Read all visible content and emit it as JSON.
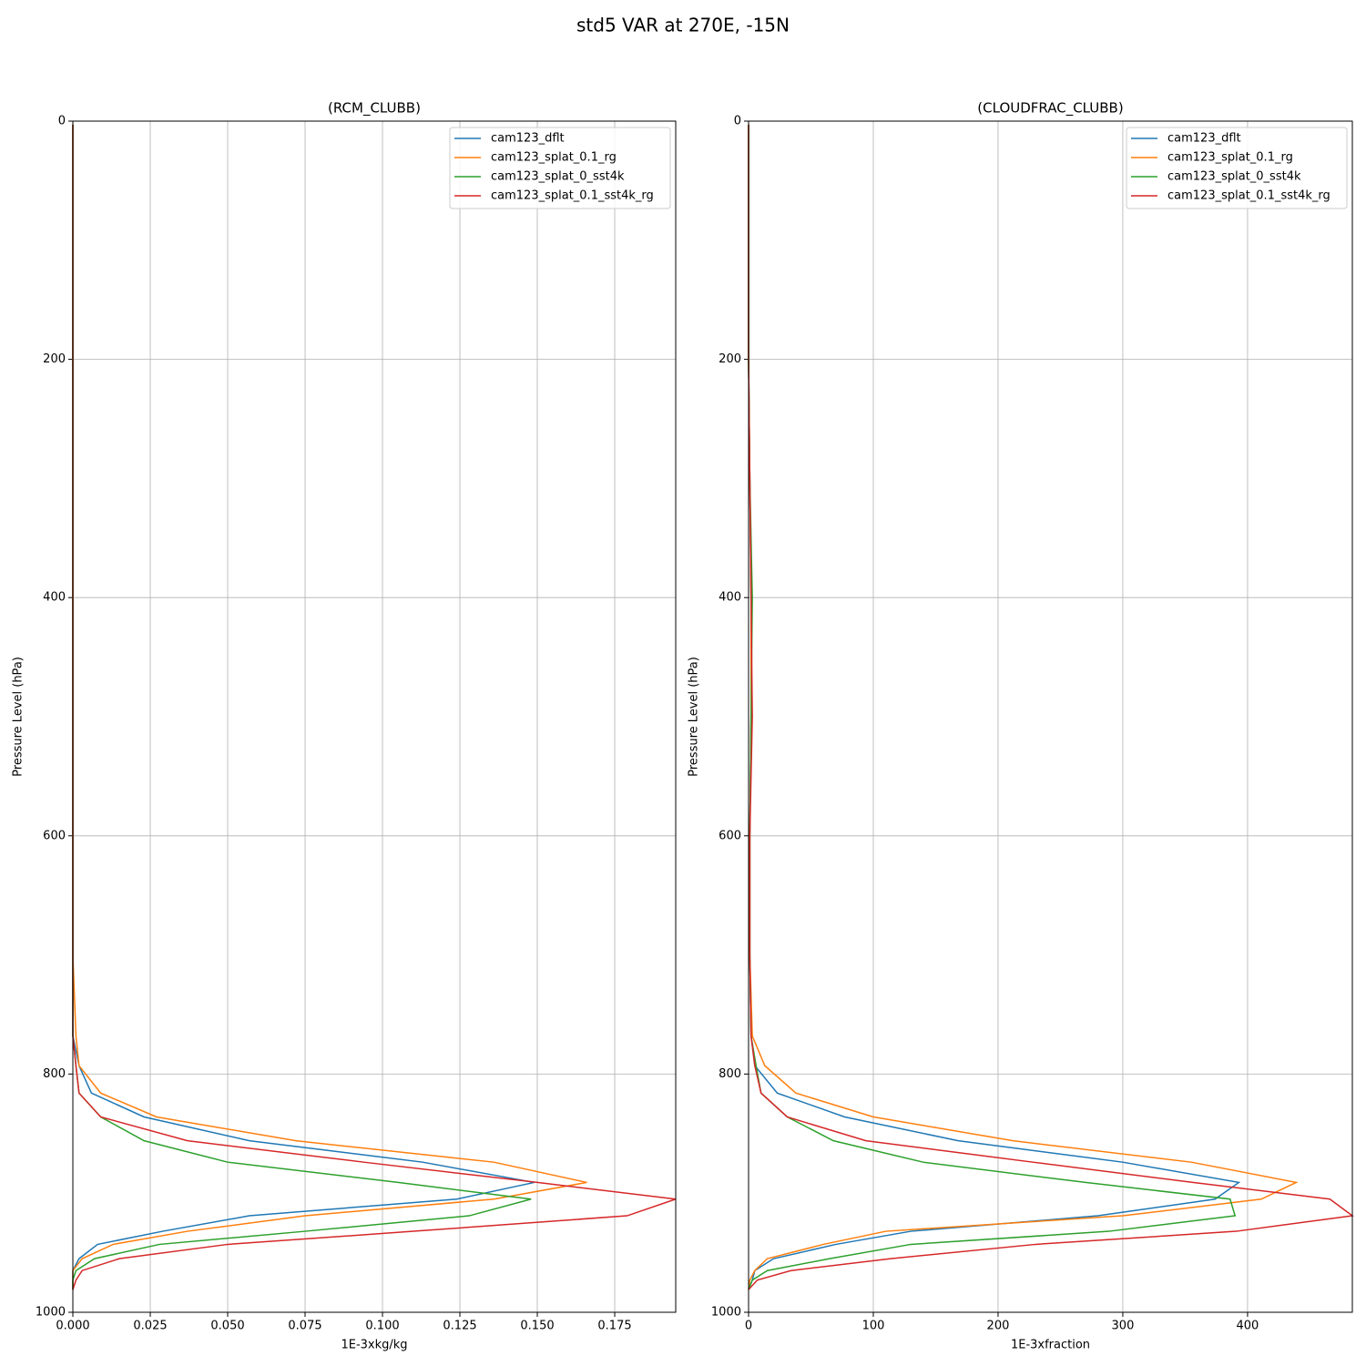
{
  "title": "std5 VAR at 270E, -15N",
  "chart_data": [
    {
      "type": "line",
      "title": "(RCM_CLUBB)",
      "xlabel": "1E-3xkg/kg",
      "ylabel": "Pressure Level (hPa)",
      "y": [
        3,
        100,
        200,
        300,
        400,
        500,
        600,
        700,
        768,
        793,
        816,
        836,
        856,
        874,
        891,
        905,
        919,
        932,
        943,
        955,
        965,
        973,
        981
      ],
      "xlim": [
        0,
        0.1947
      ],
      "ylim": [
        0,
        1000
      ],
      "invert_y": true,
      "grid": true,
      "legend": "upper right",
      "xticks": [
        {
          "value": 0,
          "label": "0.000"
        },
        0.025,
        {
          "value": 0.05,
          "label": "0.050"
        },
        0.075,
        {
          "value": 0.1,
          "label": "0.100"
        },
        0.125,
        {
          "value": 0.15,
          "label": "0.150"
        },
        0.175
      ],
      "yticks": [
        0,
        200,
        400,
        600,
        800,
        1000
      ],
      "series": [
        {
          "name": "cam123_dflt",
          "color": "#1f77b4",
          "values": [
            0,
            0,
            0,
            0,
            0,
            0,
            0,
            0,
            0,
            0.002,
            0.006,
            0.023,
            0.057,
            0.113,
            0.149,
            0.124,
            0.057,
            0.029,
            0.008,
            0.002,
            0,
            0,
            0
          ]
        },
        {
          "name": "cam123_splat_0.1_rg",
          "color": "#ff7f0e",
          "values": [
            0,
            0,
            0,
            0,
            0,
            0,
            0,
            0,
            0.001,
            0.002,
            0.009,
            0.027,
            0.072,
            0.136,
            0.166,
            0.136,
            0.075,
            0.037,
            0.013,
            0.003,
            0,
            0,
            0
          ]
        },
        {
          "name": "cam123_splat_0_sst4k",
          "color": "#2ca02c",
          "values": [
            0,
            0,
            0,
            0,
            0,
            0,
            0,
            0,
            0,
            0.001,
            0.002,
            0.009,
            0.023,
            0.05,
            0.105,
            0.148,
            0.128,
            0.075,
            0.028,
            0.007,
            0.001,
            0,
            0
          ]
        },
        {
          "name": "cam123_splat_0.1_sst4k_rg",
          "color": "#d62728",
          "values": [
            0,
            0,
            0,
            0,
            0,
            0,
            0,
            0,
            0,
            0.001,
            0.002,
            0.009,
            0.037,
            0.094,
            0.15,
            0.1947,
            0.179,
            0.11,
            0.05,
            0.015,
            0.003,
            0.001,
            0
          ]
        }
      ]
    },
    {
      "type": "line",
      "title": "(CLOUDFRAC_CLUBB)",
      "xlabel": "1E-3xfraction",
      "ylabel": "Pressure Level (hPa)",
      "y": [
        3,
        100,
        200,
        300,
        400,
        500,
        600,
        700,
        768,
        793,
        816,
        836,
        856,
        874,
        891,
        905,
        919,
        932,
        943,
        955,
        965,
        973,
        981
      ],
      "xlim": [
        0,
        484
      ],
      "ylim": [
        0,
        1000
      ],
      "invert_y": true,
      "grid": true,
      "legend": "upper right",
      "xticks": [
        0,
        100,
        200,
        300,
        400
      ],
      "yticks": [
        0,
        200,
        400,
        600,
        800,
        1000
      ],
      "series": [
        {
          "name": "cam123_dflt",
          "color": "#1f77b4",
          "values": [
            0,
            0,
            0,
            1,
            2,
            2,
            1,
            1,
            2,
            5,
            23,
            77,
            168,
            300,
            393,
            374,
            280,
            130,
            70,
            20,
            5,
            3,
            0
          ]
        },
        {
          "name": "cam123_splat_0.1_rg",
          "color": "#ff7f0e",
          "values": [
            0,
            0,
            0,
            1,
            2,
            2,
            1,
            1,
            3,
            13,
            38,
            100,
            212,
            355,
            439,
            411,
            300,
            110,
            60,
            15,
            5,
            1,
            0
          ]
        },
        {
          "name": "cam123_splat_0_sst4k",
          "color": "#2ca02c",
          "values": [
            0,
            0,
            0,
            1,
            3,
            2,
            1,
            1,
            2,
            6,
            10,
            31,
            68,
            140,
            270,
            386,
            390,
            289,
            130,
            65,
            15,
            3,
            0
          ]
        },
        {
          "name": "cam123_splat_0.1_sst4k_rg",
          "color": "#d62728",
          "values": [
            0,
            0,
            0,
            1,
            2,
            3,
            1,
            1,
            2,
            5,
            10,
            31,
            94,
            228,
            356,
            466,
            484,
            391,
            230,
            114,
            34,
            7,
            0
          ]
        }
      ]
    }
  ]
}
